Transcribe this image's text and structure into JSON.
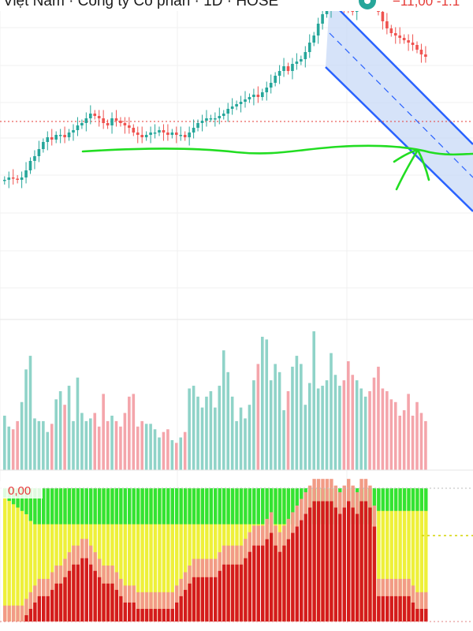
{
  "header": {
    "title": "Việt Nam · Công ty Cổ phần · 1D · HOSE",
    "price_change": "−11,00 -1.1"
  },
  "indicator": {
    "label": "0,00"
  },
  "colors": {
    "up": "#26a69a",
    "down": "#ef5350",
    "vol_up": "#8fd3c8",
    "vol_down": "#f4a5ab",
    "channel_fill": "#c8daf7",
    "channel_line": "#2962ff",
    "drawing": "#22dd22",
    "ind_green": "#33e333",
    "ind_yellow": "#eef03a",
    "ind_salmon": "#f29b86",
    "ind_red": "#d41c1c",
    "ind_dotted": "#d4d400",
    "price_line": "#e53935"
  },
  "chart_data": {
    "type": "candlestick",
    "title": "Việt Nam · Công ty Cổ phần · 1D · HOSE",
    "xlabel": "",
    "ylabel": "",
    "ylim": [
      0,
      100
    ],
    "grid": true,
    "candles_close": [
      34,
      35,
      34.5,
      34,
      35,
      38,
      42,
      44,
      47,
      50,
      52,
      51,
      53,
      53,
      52,
      54,
      55,
      57,
      58,
      60,
      62,
      61,
      60,
      58,
      57,
      60,
      59,
      58,
      57,
      56,
      54,
      53,
      52,
      53,
      54,
      54,
      55,
      54,
      53,
      54,
      53,
      53,
      52,
      54,
      56,
      58,
      59,
      60,
      60,
      60,
      61,
      62,
      64,
      65,
      66,
      67,
      68,
      69,
      70,
      69,
      71,
      73,
      75,
      78,
      80,
      82,
      80,
      83,
      84,
      85,
      88,
      92,
      95,
      100,
      104,
      106,
      108,
      109,
      110,
      108,
      107,
      105,
      108,
      110,
      112,
      110,
      109,
      105,
      101,
      98,
      96,
      95,
      94,
      93,
      92,
      91,
      89,
      87,
      86
    ],
    "volume": [
      20,
      16,
      15,
      18,
      25,
      37,
      42,
      19,
      18,
      18,
      14,
      17,
      26,
      29,
      24,
      31,
      18,
      34,
      21,
      18,
      19,
      21,
      16,
      28,
      18,
      20,
      18,
      16,
      21,
      27,
      28,
      16,
      18,
      17,
      17,
      15,
      12,
      14,
      15,
      11,
      10,
      12,
      14,
      30,
      31,
      27,
      23,
      27,
      29,
      23,
      31,
      44,
      36,
      27,
      18,
      23,
      19,
      24,
      33,
      39,
      49,
      48,
      33,
      39,
      36,
      22,
      29,
      38,
      42,
      39,
      24,
      32,
      51,
      30,
      31,
      33,
      43,
      35,
      31,
      33,
      40,
      35,
      33,
      30,
      27,
      29,
      34,
      38,
      30,
      29,
      26,
      25,
      20,
      22,
      28,
      20,
      25,
      21,
      18
    ],
    "indicator": [
      [
        0.9,
        0.1,
        0.0
      ],
      [
        0.85,
        0.1,
        0.0
      ],
      [
        0.8,
        0.15,
        0.0
      ],
      [
        0.75,
        0.2,
        0.0
      ],
      [
        0.7,
        0.2,
        0.0
      ],
      [
        0.65,
        0.25,
        0.05
      ],
      [
        0.55,
        0.3,
        0.1
      ],
      [
        0.5,
        0.3,
        0.15
      ],
      [
        0.5,
        0.3,
        0.2
      ],
      [
        0.5,
        0.3,
        0.2
      ],
      [
        0.5,
        0.35,
        0.2
      ],
      [
        0.5,
        0.35,
        0.25
      ],
      [
        0.5,
        0.35,
        0.3
      ],
      [
        0.5,
        0.35,
        0.3
      ],
      [
        0.5,
        0.35,
        0.35
      ],
      [
        0.5,
        0.35,
        0.4
      ],
      [
        0.5,
        0.35,
        0.45
      ],
      [
        0.5,
        0.35,
        0.45
      ],
      [
        0.5,
        0.3,
        0.5
      ],
      [
        0.5,
        0.35,
        0.5
      ],
      [
        0.5,
        0.35,
        0.45
      ],
      [
        0.5,
        0.35,
        0.4
      ],
      [
        0.5,
        0.35,
        0.35
      ],
      [
        0.5,
        0.35,
        0.3
      ],
      [
        0.5,
        0.35,
        0.3
      ],
      [
        0.5,
        0.35,
        0.3
      ],
      [
        0.5,
        0.3,
        0.25
      ],
      [
        0.5,
        0.3,
        0.2
      ],
      [
        0.5,
        0.3,
        0.15
      ],
      [
        0.5,
        0.3,
        0.15
      ],
      [
        0.5,
        0.3,
        0.15
      ],
      [
        0.5,
        0.3,
        0.1
      ],
      [
        0.5,
        0.25,
        0.1
      ],
      [
        0.5,
        0.25,
        0.1
      ],
      [
        0.5,
        0.25,
        0.1
      ],
      [
        0.5,
        0.25,
        0.1
      ],
      [
        0.5,
        0.25,
        0.1
      ],
      [
        0.5,
        0.2,
        0.1
      ],
      [
        0.5,
        0.2,
        0.1
      ],
      [
        0.5,
        0.2,
        0.1
      ],
      [
        0.5,
        0.2,
        0.15
      ],
      [
        0.5,
        0.2,
        0.2
      ],
      [
        0.5,
        0.2,
        0.25
      ],
      [
        0.5,
        0.2,
        0.3
      ],
      [
        0.5,
        0.2,
        0.35
      ],
      [
        0.5,
        0.2,
        0.35
      ],
      [
        0.5,
        0.2,
        0.35
      ],
      [
        0.5,
        0.2,
        0.35
      ],
      [
        0.5,
        0.2,
        0.35
      ],
      [
        0.5,
        0.2,
        0.35
      ],
      [
        0.5,
        0.2,
        0.4
      ],
      [
        0.5,
        0.2,
        0.45
      ],
      [
        0.5,
        0.2,
        0.45
      ],
      [
        0.5,
        0.2,
        0.45
      ],
      [
        0.5,
        0.2,
        0.45
      ],
      [
        0.5,
        0.2,
        0.45
      ],
      [
        0.5,
        0.2,
        0.5
      ],
      [
        0.5,
        0.2,
        0.55
      ],
      [
        0.5,
        0.2,
        0.6
      ],
      [
        0.5,
        0.2,
        0.6
      ],
      [
        0.5,
        0.2,
        0.6
      ],
      [
        0.5,
        0.2,
        0.65
      ],
      [
        0.5,
        0.2,
        0.7
      ],
      [
        0.5,
        0.2,
        0.6
      ],
      [
        0.5,
        0.2,
        0.55
      ],
      [
        0.5,
        0.2,
        0.6
      ],
      [
        0.5,
        0.2,
        0.65
      ],
      [
        0.5,
        0.2,
        0.7
      ],
      [
        0.5,
        0.2,
        0.75
      ],
      [
        0.5,
        0.2,
        0.8
      ],
      [
        0.5,
        0.2,
        0.85
      ],
      [
        0.5,
        0.2,
        0.9
      ],
      [
        0.5,
        0.2,
        0.95
      ],
      [
        0.5,
        0.2,
        0.95
      ],
      [
        0.5,
        0.2,
        0.95
      ],
      [
        0.5,
        0.2,
        0.95
      ],
      [
        0.5,
        0.2,
        0.95
      ],
      [
        0.5,
        0.2,
        0.9
      ],
      [
        0.5,
        0.2,
        0.85
      ],
      [
        0.5,
        0.2,
        0.9
      ],
      [
        0.5,
        0.2,
        0.95
      ],
      [
        0.5,
        0.2,
        0.9
      ],
      [
        0.5,
        0.2,
        0.85
      ],
      [
        0.5,
        0.2,
        0.95
      ],
      [
        0.5,
        0.2,
        0.95
      ],
      [
        0.5,
        0.2,
        0.9
      ],
      [
        0.5,
        0.2,
        0.75
      ],
      [
        0.7,
        0.3,
        0.2
      ],
      [
        0.7,
        0.3,
        0.2
      ],
      [
        0.7,
        0.3,
        0.2
      ],
      [
        0.7,
        0.3,
        0.2
      ],
      [
        0.7,
        0.3,
        0.2
      ],
      [
        0.7,
        0.3,
        0.2
      ],
      [
        0.7,
        0.3,
        0.2
      ],
      [
        0.7,
        0.3,
        0.2
      ],
      [
        0.7,
        0.3,
        0.15
      ],
      [
        0.7,
        0.3,
        0.1
      ],
      [
        0.7,
        0.3,
        0.1
      ],
      [
        0.7,
        0.3,
        0.1
      ]
    ]
  }
}
